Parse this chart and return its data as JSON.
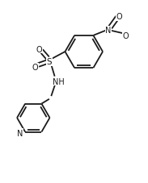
{
  "bg_color": "#ffffff",
  "line_color": "#1a1a1a",
  "line_width": 1.3,
  "font_size": 7.0,
  "figsize": [
    1.83,
    2.28
  ],
  "dpi": 100,
  "xlim": [
    -0.5,
    2.2
  ],
  "ylim": [
    -2.5,
    1.2
  ]
}
